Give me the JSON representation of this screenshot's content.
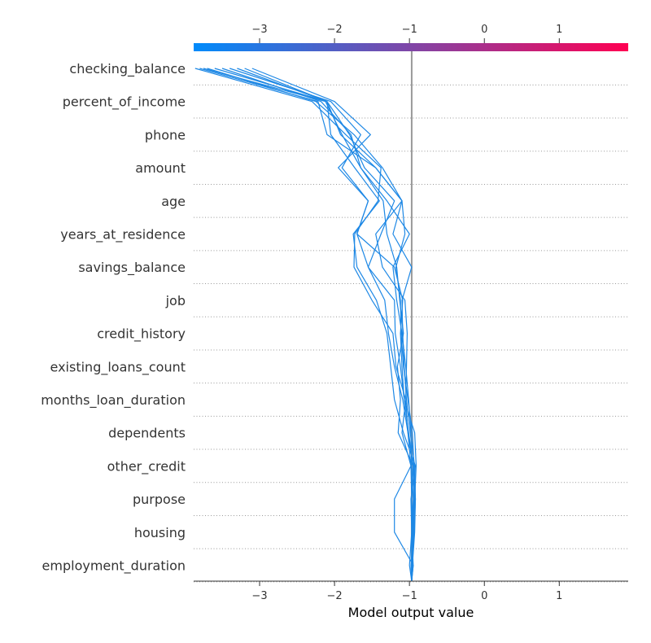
{
  "chart_data": {
    "type": "line",
    "chart_kind": "decision plot",
    "xlabel": "Model output value",
    "ylabel": "",
    "title": "",
    "xlim": [
      -3.88,
      1.92
    ],
    "xticks": [
      -3,
      -2,
      -1,
      0,
      1
    ],
    "xtick_labels": [
      "−3",
      "−2",
      "−1",
      "0",
      "1"
    ],
    "base_value": -0.97,
    "grid": "dotted horizontal lines per feature",
    "colorbar": {
      "position": "top",
      "colors": [
        "#008bfb",
        "#ff0052"
      ]
    },
    "line_color": "#1e88e5",
    "features": [
      "checking_balance",
      "percent_of_income",
      "phone",
      "amount",
      "age",
      "years_at_residence",
      "savings_balance",
      "job",
      "credit_history",
      "existing_loans_count",
      "months_loan_duration",
      "dependents",
      "other_credit",
      "purpose",
      "housing",
      "employment_duration"
    ],
    "series": [
      {
        "values": [
          -0.97,
          -0.97,
          -0.97,
          -0.97,
          -0.95,
          -1.15,
          -1.12,
          -1.16,
          -1.08,
          -1.13,
          -1.17,
          -1.3,
          -1.35,
          -1.65,
          -1.9,
          -2.12,
          -3.75
        ]
      },
      {
        "values": [
          -0.97,
          -0.97,
          -0.94,
          -0.93,
          -0.91,
          -0.93,
          -1.07,
          -1.1,
          -1.12,
          -1.09,
          -1.2,
          -1.7,
          -1.55,
          -1.9,
          -1.65,
          -2.05,
          -3.4
        ]
      },
      {
        "values": [
          -0.97,
          -0.95,
          -1.2,
          -1.2,
          -0.98,
          -1.02,
          -1.05,
          -1.18,
          -1.22,
          -1.5,
          -1.74,
          -1.73,
          -1.42,
          -1.38,
          -1.85,
          -2.3,
          -3.86
        ]
      },
      {
        "values": [
          -0.97,
          -1.0,
          -0.97,
          -0.93,
          -0.95,
          -1.01,
          -1.07,
          -1.12,
          -1.19,
          -1.2,
          -1.55,
          -1.38,
          -1.2,
          -1.6,
          -1.8,
          -2.1,
          -3.6
        ]
      },
      {
        "values": [
          -0.97,
          -0.95,
          -0.97,
          -0.98,
          -0.92,
          -1.08,
          -1.2,
          -1.25,
          -1.3,
          -1.44,
          -1.7,
          -1.75,
          -1.4,
          -1.73,
          -2.05,
          -2.1,
          -3.2
        ]
      },
      {
        "values": [
          -0.97,
          -0.96,
          -0.93,
          -0.92,
          -0.95,
          -1.02,
          -1.09,
          -1.2,
          -1.28,
          -1.33,
          -1.55,
          -1.7,
          -1.55,
          -1.95,
          -1.52,
          -2.0,
          -3.1
        ]
      },
      {
        "values": [
          -0.97,
          -0.98,
          -0.95,
          -0.97,
          -0.98,
          -1.1,
          -1.05,
          -1.04,
          -1.03,
          -1.06,
          -1.36,
          -1.45,
          -1.1,
          -1.45,
          -1.92,
          -2.1,
          -3.3
        ]
      },
      {
        "values": [
          -0.97,
          -0.97,
          -0.96,
          -0.95,
          -0.97,
          -0.98,
          -1.01,
          -1.05,
          -1.1,
          -1.17,
          -1.22,
          -1.0,
          -1.3,
          -1.65,
          -1.78,
          -2.18,
          -3.5
        ]
      },
      {
        "values": [
          -0.97,
          -0.96,
          -0.95,
          -0.94,
          -0.94,
          -0.96,
          -1.02,
          -1.08,
          -1.11,
          -1.12,
          -1.18,
          -1.06,
          -1.1,
          -1.36,
          -1.74,
          -2.25,
          -3.7
        ]
      },
      {
        "values": [
          -0.97,
          -0.96,
          -0.94,
          -0.92,
          -0.93,
          -0.99,
          -1.04,
          -1.07,
          -1.09,
          -1.1,
          -0.97,
          -1.22,
          -1.1,
          -1.45,
          -2.1,
          -2.22,
          -3.8
        ]
      }
    ]
  }
}
